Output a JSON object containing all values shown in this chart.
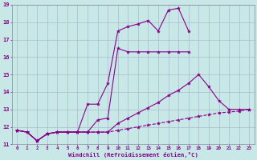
{
  "xlabel": "Windchill (Refroidissement éolien,°C)",
  "background_color": "#c8e8e8",
  "grid_color": "#aabbcc",
  "line_color": "#880088",
  "xlim": [
    -0.5,
    23.5
  ],
  "ylim": [
    11,
    19
  ],
  "yticks": [
    11,
    12,
    13,
    14,
    15,
    16,
    17,
    18,
    19
  ],
  "xticks": [
    0,
    1,
    2,
    3,
    4,
    5,
    6,
    7,
    8,
    9,
    10,
    11,
    12,
    13,
    14,
    15,
    16,
    17,
    18,
    19,
    20,
    21,
    22,
    23
  ],
  "line1_x": [
    0,
    1,
    2,
    3,
    4,
    5,
    6,
    7,
    8,
    9,
    10,
    11,
    12,
    13,
    14,
    15,
    16,
    17
  ],
  "line1_y": [
    11.8,
    11.7,
    11.2,
    11.6,
    11.7,
    11.7,
    11.7,
    13.3,
    13.3,
    14.5,
    17.5,
    17.75,
    17.9,
    18.1,
    17.5,
    18.7,
    18.8,
    17.5
  ],
  "line2_x": [
    0,
    1,
    2,
    3,
    4,
    5,
    6,
    7,
    8,
    9,
    10,
    11,
    12,
    13,
    14,
    15,
    16,
    17
  ],
  "line2_y": [
    11.8,
    11.7,
    11.2,
    11.6,
    11.7,
    11.7,
    11.7,
    11.7,
    12.4,
    12.5,
    16.5,
    16.3,
    16.3,
    16.3,
    16.3,
    16.3,
    16.3,
    16.3
  ],
  "line3_x": [
    0,
    1,
    2,
    3,
    4,
    5,
    6,
    7,
    8,
    9,
    10,
    11,
    12,
    13,
    14,
    15,
    16,
    17,
    18,
    19,
    20,
    21,
    22,
    23
  ],
  "line3_y": [
    11.8,
    11.7,
    11.2,
    11.6,
    11.7,
    11.7,
    11.7,
    11.7,
    11.7,
    11.7,
    12.2,
    12.5,
    12.8,
    13.1,
    13.4,
    13.8,
    14.1,
    14.5,
    15.0,
    14.3,
    13.5,
    13.0,
    13.0,
    13.0
  ],
  "line4_x": [
    0,
    1,
    2,
    3,
    4,
    5,
    6,
    7,
    8,
    9,
    10,
    11,
    12,
    13,
    14,
    15,
    16,
    17,
    18,
    19,
    20,
    21,
    22,
    23
  ],
  "line4_y": [
    11.8,
    11.7,
    11.2,
    11.6,
    11.7,
    11.7,
    11.7,
    11.7,
    11.7,
    11.7,
    11.8,
    11.9,
    12.0,
    12.1,
    12.2,
    12.3,
    12.4,
    12.5,
    12.6,
    12.7,
    12.8,
    12.85,
    12.9,
    13.0
  ]
}
